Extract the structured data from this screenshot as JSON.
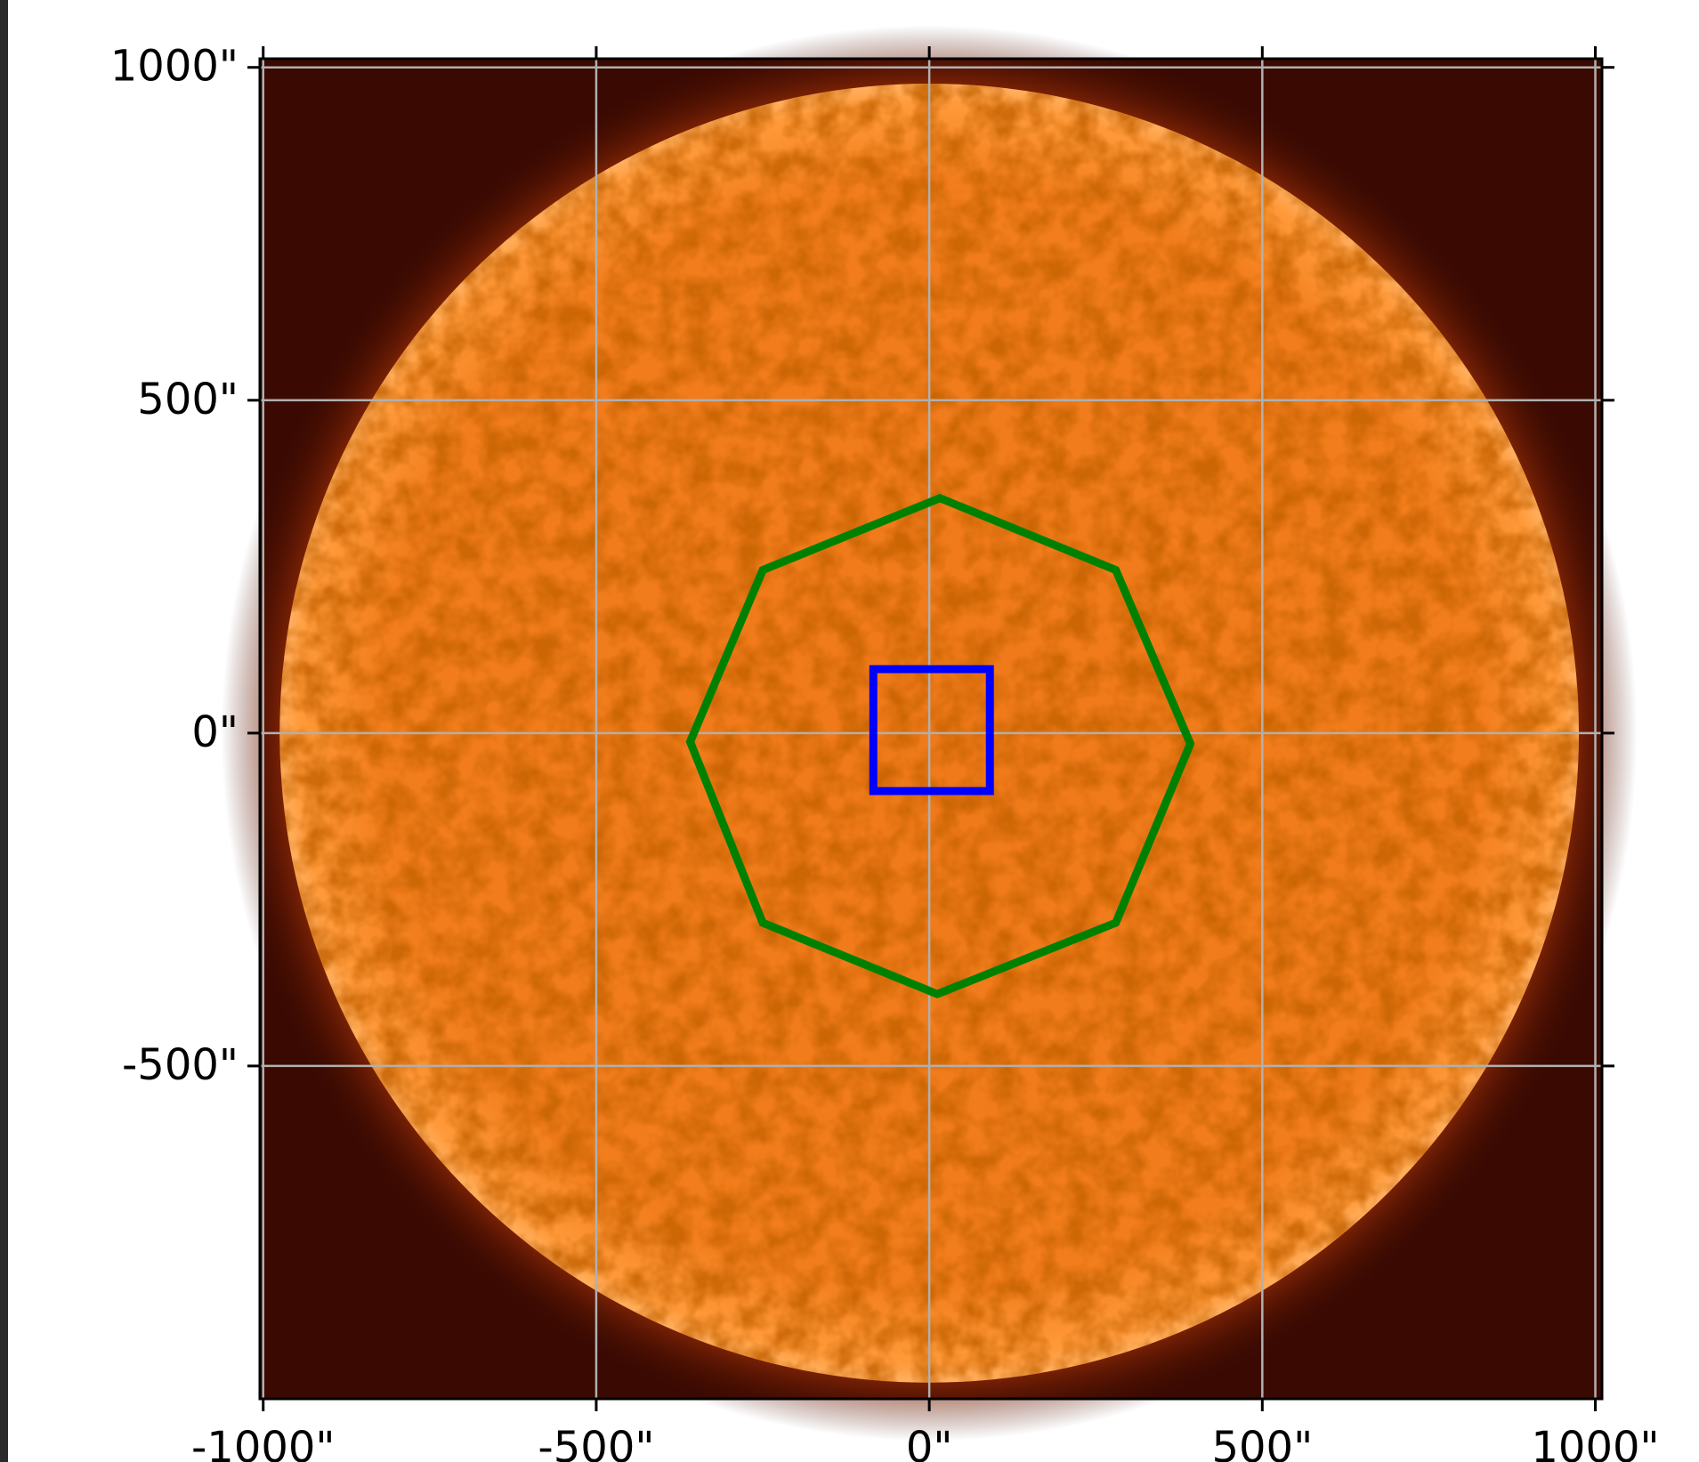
{
  "chart_data": {
    "type": "map",
    "xlim": [
      -1005,
      1010
    ],
    "ylim": [
      -1000,
      1013
    ],
    "xticks": [
      {
        "value": -1000,
        "label": "-1000\""
      },
      {
        "value": -500,
        "label": "-500\""
      },
      {
        "value": 0,
        "label": "0\""
      },
      {
        "value": 500,
        "label": "500\""
      },
      {
        "value": 1000,
        "label": "1000\""
      }
    ],
    "yticks": [
      {
        "value": -500,
        "label": "-500\""
      },
      {
        "value": 0,
        "label": "0\""
      },
      {
        "value": 500,
        "label": "500\""
      },
      {
        "value": 1000,
        "label": "1000\""
      }
    ],
    "grid": true,
    "shapes": [
      {
        "color": "#008000",
        "x": [
          16,
          280,
          392,
          280,
          12,
          -250,
          -359,
          -250
        ],
        "y": [
          353,
          245,
          -16,
          -285,
          -392,
          -285,
          -13,
          245
        ]
      },
      {
        "color": "#0000ff",
        "x": [
          -84,
          91,
          91,
          -84
        ],
        "y": [
          96,
          96,
          -87,
          -87
        ]
      }
    ]
  }
}
